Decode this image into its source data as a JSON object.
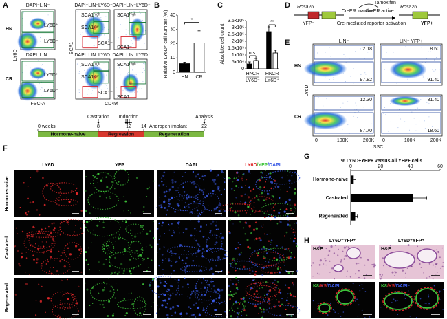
{
  "panel_labels": [
    "A",
    "B",
    "C",
    "D",
    "E",
    "F",
    "G",
    "H"
  ],
  "A": {
    "row_labels": [
      "HN",
      "CR"
    ],
    "titles": [
      "DAPI⁻LIN⁻",
      "DAPI⁻LIN⁻LY6D⁻",
      "DAPI⁻LIN⁻LY6D⁺"
    ],
    "y_label": "LY6D",
    "x_label_left": "FSC-A",
    "y_label_mid": "SCA1",
    "x_label_mid": "CD49f",
    "gates": [
      "LY6D⁺",
      "LY6D⁻",
      "SCA1ʰⁱᵍʰ",
      "SCA1ˡᵒʷ",
      "SCA1⁻"
    ]
  },
  "D": {
    "locus": "Rosa26",
    "before": "YFP⁻",
    "drug": "Tamoxifen",
    "inactive": "CreER inactive",
    "active": "CreER active",
    "process": "Cre-mediated reporter activation",
    "after": "YFP+"
  },
  "E": {
    "titles": [
      "LIN⁻",
      "LIN⁻ YFP+"
    ],
    "row_labels": [
      "HN",
      "CR"
    ],
    "y_label": "LY6D",
    "x_label": "SSC",
    "x_tick_labels": [
      "0",
      "100K",
      "200K"
    ],
    "gate_percentages": [
      [
        "2.18",
        "97.82"
      ],
      [
        "8.60",
        "91.40"
      ],
      [
        "12.30",
        "87.70"
      ],
      [
        "81.40",
        "18.60"
      ]
    ]
  },
  "timeline": {
    "ticks": [
      {
        "value": 0,
        "label": "0 weeks"
      },
      8,
      12,
      14,
      22
    ],
    "events": [
      "Castration",
      "Induction",
      "Androgen implant",
      "Analysis"
    ],
    "phases": [
      "Hormone-naive",
      "Regression",
      "Regeneration"
    ]
  },
  "F": {
    "channels": [
      "LY6D",
      "YFP",
      "DAPI"
    ],
    "merged": [
      "LY6D",
      "/YFP",
      "/DAPI"
    ],
    "conditions": [
      "Hormone-naive",
      "Castrated",
      "Regenerated"
    ]
  },
  "H": {
    "populations": [
      "LY6D⁻YFP⁺",
      "LY6D⁺YFP⁺"
    ],
    "stain_top": "H&E",
    "stain_bottom": [
      "K8",
      "/K5",
      "/DAPI"
    ]
  },
  "chart_data": [
    {
      "type": "bar",
      "y_label": "Relative LY6D⁺ cell number (%)",
      "categories": [
        "HN",
        "CR"
      ],
      "values": [
        6,
        20.5
      ],
      "errors": [
        1,
        8.5
      ],
      "colors": [
        "#000000",
        "#ffffff"
      ],
      "ylim": [
        0,
        40
      ],
      "yticks": [
        0,
        10,
        20,
        30,
        40
      ],
      "annotations": [
        "*"
      ]
    },
    {
      "type": "bar",
      "y_label": "Absolute cell count",
      "categories": [
        "HN",
        "CR",
        "HN",
        "CR"
      ],
      "groups": [
        "LY6D⁻",
        "LY6D⁺"
      ],
      "values": [
        35000,
        60000,
        270000,
        115000
      ],
      "errors": [
        15000,
        15000,
        35000,
        20000
      ],
      "colors": [
        "#000000",
        "#ffffff",
        "#000000",
        "#ffffff"
      ],
      "ylim": [
        0,
        350000
      ],
      "yticks": [
        0,
        {
          "value": 50000,
          "label": "5x10⁴"
        },
        {
          "value": 100000,
          "label": "1x10⁵"
        },
        {
          "value": 150000,
          "label": "1.5x10⁵"
        },
        {
          "value": 200000,
          "label": "2x10⁵"
        },
        {
          "value": 250000,
          "label": "2.5x10⁵"
        },
        {
          "value": 300000,
          "label": "3x10⁵"
        },
        {
          "value": 350000,
          "label": "3.5x10⁵"
        }
      ],
      "annotations": [
        "n.s.",
        "**"
      ]
    },
    {
      "type": "hbar",
      "title": "% LY6D+YFP+ versus all YFP+ cells",
      "categories": [
        "Hormone-naive",
        "Castrated",
        "Regenerated"
      ],
      "values": [
        2,
        42,
        3
      ],
      "errors": [
        1.5,
        9,
        1.5
      ],
      "color": "#000000",
      "xlim": [
        0,
        60
      ],
      "xticks": [
        0,
        20,
        40,
        60
      ]
    }
  ]
}
